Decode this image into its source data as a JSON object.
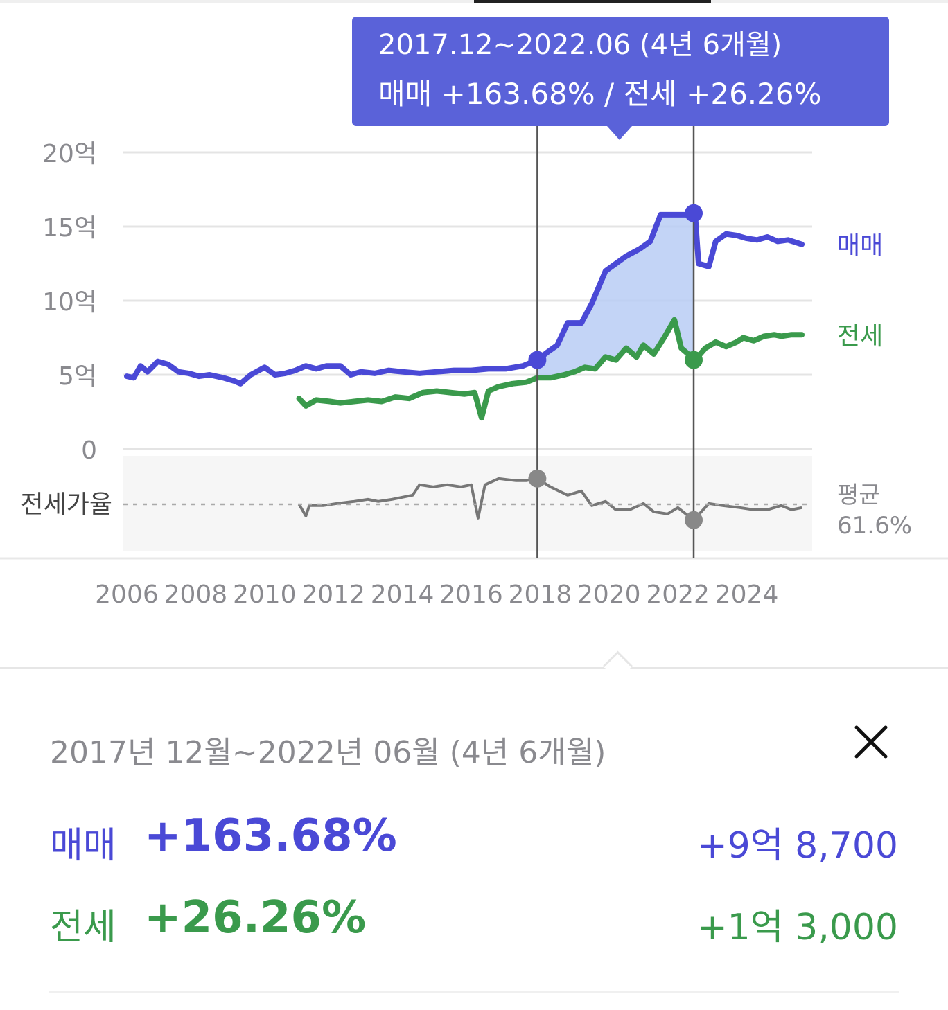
{
  "chart_data": {
    "type": "line",
    "x_range": [
      2005.9,
      2025.9
    ],
    "ylim": [
      0,
      20
    ],
    "y_unit": "억",
    "yticks": [
      {
        "value": 20,
        "label": "20억"
      },
      {
        "value": 15,
        "label": "15억"
      },
      {
        "value": 10,
        "label": "10억"
      },
      {
        "value": 5,
        "label": "5억"
      },
      {
        "value": 0,
        "label": "0"
      }
    ],
    "xticks": [
      "2006",
      "2008",
      "2010",
      "2012",
      "2014",
      "2016",
      "2018",
      "2020",
      "2022",
      "2024"
    ],
    "grid": true,
    "series": [
      {
        "name": "매매",
        "color": "#4a49d6",
        "points": [
          [
            2006.0,
            4.9
          ],
          [
            2006.2,
            4.8
          ],
          [
            2006.4,
            5.6
          ],
          [
            2006.6,
            5.2
          ],
          [
            2006.9,
            5.9
          ],
          [
            2007.2,
            5.7
          ],
          [
            2007.5,
            5.2
          ],
          [
            2007.8,
            5.1
          ],
          [
            2008.1,
            4.9
          ],
          [
            2008.4,
            5.0
          ],
          [
            2008.8,
            4.8
          ],
          [
            2009.1,
            4.6
          ],
          [
            2009.3,
            4.4
          ],
          [
            2009.6,
            5.0
          ],
          [
            2010.0,
            5.5
          ],
          [
            2010.3,
            5.0
          ],
          [
            2010.6,
            5.1
          ],
          [
            2010.9,
            5.3
          ],
          [
            2011.2,
            5.6
          ],
          [
            2011.5,
            5.4
          ],
          [
            2011.8,
            5.6
          ],
          [
            2012.2,
            5.6
          ],
          [
            2012.5,
            5.0
          ],
          [
            2012.8,
            5.2
          ],
          [
            2013.2,
            5.1
          ],
          [
            2013.6,
            5.3
          ],
          [
            2014.0,
            5.2
          ],
          [
            2014.5,
            5.1
          ],
          [
            2015.0,
            5.2
          ],
          [
            2015.5,
            5.3
          ],
          [
            2016.0,
            5.3
          ],
          [
            2016.5,
            5.4
          ],
          [
            2017.0,
            5.4
          ],
          [
            2017.5,
            5.6
          ],
          [
            2017.92,
            6.0
          ],
          [
            2018.2,
            6.5
          ],
          [
            2018.5,
            7.0
          ],
          [
            2018.8,
            8.5
          ],
          [
            2019.2,
            8.5
          ],
          [
            2019.5,
            9.8
          ],
          [
            2019.9,
            12.0
          ],
          [
            2020.2,
            12.5
          ],
          [
            2020.5,
            13.0
          ],
          [
            2020.9,
            13.5
          ],
          [
            2021.2,
            14.0
          ],
          [
            2021.5,
            15.8
          ],
          [
            2021.8,
            15.8
          ],
          [
            2022.0,
            15.8
          ],
          [
            2022.3,
            15.8
          ],
          [
            2022.5,
            15.9
          ],
          [
            2022.6,
            12.5
          ],
          [
            2022.9,
            12.3
          ],
          [
            2023.1,
            14.0
          ],
          [
            2023.4,
            14.5
          ],
          [
            2023.7,
            14.4
          ],
          [
            2024.0,
            14.2
          ],
          [
            2024.3,
            14.1
          ],
          [
            2024.6,
            14.3
          ],
          [
            2024.9,
            14.0
          ],
          [
            2025.2,
            14.1
          ],
          [
            2025.6,
            13.8
          ]
        ]
      },
      {
        "name": "전세",
        "color": "#3a9a4c",
        "points": [
          [
            2011.0,
            3.4
          ],
          [
            2011.2,
            2.9
          ],
          [
            2011.5,
            3.3
          ],
          [
            2011.9,
            3.2
          ],
          [
            2012.2,
            3.1
          ],
          [
            2012.6,
            3.2
          ],
          [
            2013.0,
            3.3
          ],
          [
            2013.4,
            3.2
          ],
          [
            2013.8,
            3.5
          ],
          [
            2014.2,
            3.4
          ],
          [
            2014.6,
            3.8
          ],
          [
            2015.0,
            3.9
          ],
          [
            2015.4,
            3.8
          ],
          [
            2015.8,
            3.7
          ],
          [
            2016.1,
            3.8
          ],
          [
            2016.3,
            2.1
          ],
          [
            2016.5,
            3.9
          ],
          [
            2016.8,
            4.2
          ],
          [
            2017.2,
            4.4
          ],
          [
            2017.6,
            4.5
          ],
          [
            2017.92,
            4.8
          ],
          [
            2018.3,
            4.8
          ],
          [
            2018.7,
            5.0
          ],
          [
            2019.0,
            5.2
          ],
          [
            2019.3,
            5.5
          ],
          [
            2019.6,
            5.4
          ],
          [
            2019.9,
            6.2
          ],
          [
            2020.2,
            6.0
          ],
          [
            2020.5,
            6.8
          ],
          [
            2020.8,
            6.2
          ],
          [
            2021.0,
            7.0
          ],
          [
            2021.3,
            6.4
          ],
          [
            2021.6,
            7.5
          ],
          [
            2021.9,
            8.7
          ],
          [
            2022.1,
            6.8
          ],
          [
            2022.5,
            6.0
          ],
          [
            2022.8,
            6.8
          ],
          [
            2023.1,
            7.2
          ],
          [
            2023.4,
            6.9
          ],
          [
            2023.7,
            7.2
          ],
          [
            2023.9,
            7.5
          ],
          [
            2024.2,
            7.3
          ],
          [
            2024.5,
            7.6
          ],
          [
            2024.8,
            7.7
          ],
          [
            2025.0,
            7.6
          ],
          [
            2025.3,
            7.7
          ],
          [
            2025.6,
            7.7
          ]
        ]
      }
    ],
    "ratio": {
      "label": "전세가율",
      "avg_label": "평균",
      "avg_value": "61.6%",
      "color": "#777777",
      "points": [
        [
          2011.0,
          61.6
        ],
        [
          2011.2,
          56
        ],
        [
          2011.3,
          61
        ],
        [
          2011.7,
          61
        ],
        [
          2012.1,
          62
        ],
        [
          2012.6,
          63
        ],
        [
          2013.0,
          64
        ],
        [
          2013.3,
          63
        ],
        [
          2013.7,
          64
        ],
        [
          2014.0,
          65
        ],
        [
          2014.3,
          66
        ],
        [
          2014.5,
          71
        ],
        [
          2014.9,
          70
        ],
        [
          2015.3,
          71
        ],
        [
          2015.7,
          70
        ],
        [
          2016.0,
          71
        ],
        [
          2016.2,
          55
        ],
        [
          2016.4,
          71
        ],
        [
          2016.8,
          74
        ],
        [
          2017.3,
          73
        ],
        [
          2017.6,
          73
        ],
        [
          2017.92,
          74
        ],
        [
          2018.3,
          70
        ],
        [
          2018.8,
          66
        ],
        [
          2019.2,
          68
        ],
        [
          2019.5,
          61
        ],
        [
          2019.9,
          63
        ],
        [
          2020.2,
          59
        ],
        [
          2020.6,
          59
        ],
        [
          2021.0,
          62
        ],
        [
          2021.3,
          58
        ],
        [
          2021.7,
          57
        ],
        [
          2022.0,
          60
        ],
        [
          2022.46,
          54
        ],
        [
          2022.9,
          62
        ],
        [
          2023.3,
          61
        ],
        [
          2023.8,
          60
        ],
        [
          2024.2,
          59
        ],
        [
          2024.6,
          59
        ],
        [
          2025.0,
          61
        ],
        [
          2025.3,
          59
        ],
        [
          2025.6,
          60
        ]
      ]
    },
    "selection": {
      "start": 2017.92,
      "end": 2022.46,
      "sale_start": 6.0,
      "sale_end": 15.9,
      "jeon_start": 4.8,
      "jeon_end": 6.0,
      "ratio_start": 74,
      "ratio_end": 54
    }
  },
  "tooltip": {
    "line1": "2017.12~2022.06 (4년 6개월)",
    "line2": "매매 +163.68%  /  전세 +26.26%",
    "color": "#5a62d9"
  },
  "panel": {
    "range_title": "2017년 12월~2022년 06월 (4년 6개월)",
    "close_icon": "close-icon",
    "sale": {
      "label": "매매",
      "pct": "+163.68%",
      "amount": "+9억 8,700"
    },
    "jeonse": {
      "label": "전세",
      "pct": "+26.26%",
      "amount": "+1억 3,000"
    }
  }
}
